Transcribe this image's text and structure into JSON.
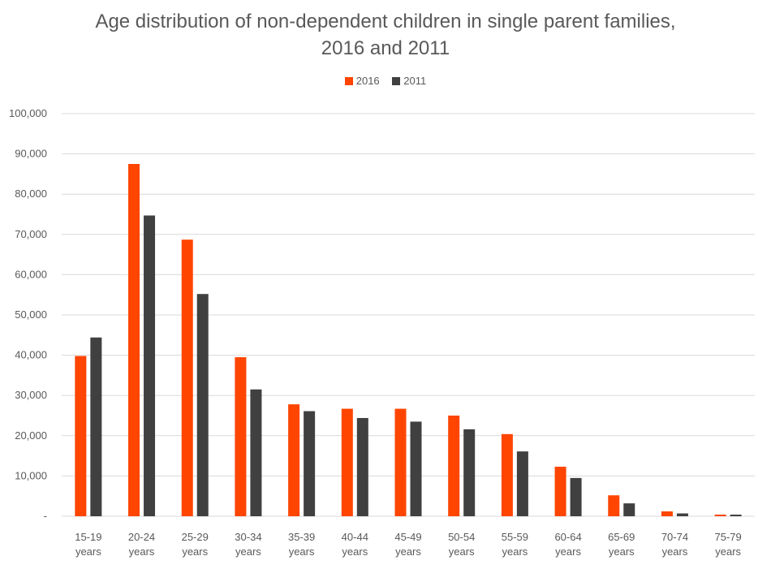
{
  "chart_data": {
    "type": "bar",
    "title": [
      "Age distribution of non-dependent children in single parent families,",
      "2016 and 2011"
    ],
    "xlabel": "",
    "ylabel": "",
    "ylim": [
      0,
      100000
    ],
    "yticks": [
      0,
      10000,
      20000,
      30000,
      40000,
      50000,
      60000,
      70000,
      80000,
      90000,
      100000
    ],
    "ytick_labels": [
      "-",
      "10,000",
      "20,000",
      "30,000",
      "40,000",
      "50,000",
      "60,000",
      "70,000",
      "80,000",
      "90,000",
      "100,000"
    ],
    "grid": true,
    "legend_position": "top",
    "categories": [
      [
        "15-19",
        "years"
      ],
      [
        "20-24",
        "years"
      ],
      [
        "25-29",
        "years"
      ],
      [
        "30-34",
        "years"
      ],
      [
        "35-39",
        "years"
      ],
      [
        "40-44",
        "years"
      ],
      [
        "45-49",
        "years"
      ],
      [
        "50-54",
        "years"
      ],
      [
        "55-59",
        "years"
      ],
      [
        "60-64",
        "years"
      ],
      [
        "65-69",
        "years"
      ],
      [
        "70-74",
        "years"
      ],
      [
        "75-79",
        "years"
      ]
    ],
    "series": [
      {
        "name": "2016",
        "color": "#ff4500",
        "values": [
          39800,
          87500,
          68700,
          39500,
          27800,
          26700,
          26700,
          25000,
          20400,
          12300,
          5200,
          1200,
          400
        ]
      },
      {
        "name": "2011",
        "color": "#404040",
        "values": [
          44400,
          74700,
          55200,
          31500,
          26100,
          24400,
          23500,
          21600,
          16100,
          9500,
          3200,
          700,
          400
        ]
      }
    ]
  }
}
